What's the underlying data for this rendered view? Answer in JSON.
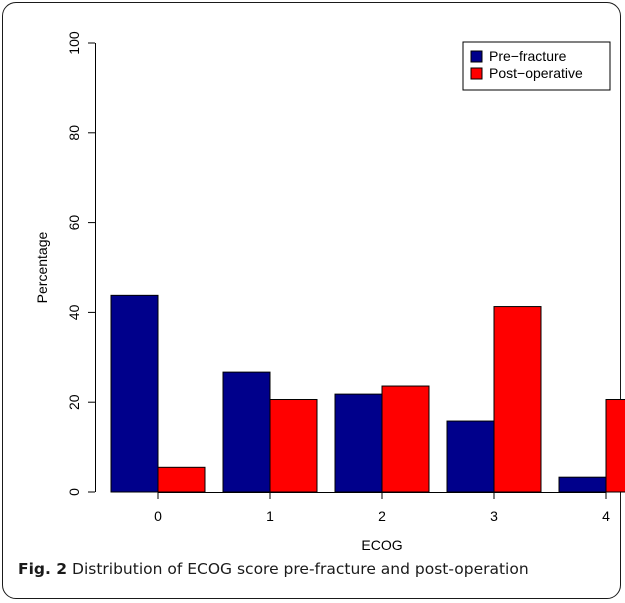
{
  "chart_data": {
    "type": "bar",
    "categories": [
      "0",
      "1",
      "2",
      "3",
      "4"
    ],
    "series": [
      {
        "name": "Pre−fracture",
        "color": "#00008B",
        "values": [
          43.8,
          26.7,
          21.8,
          15.8,
          3.3
        ]
      },
      {
        "name": "Post−operative",
        "color": "#FF0000",
        "values": [
          5.5,
          20.6,
          23.6,
          41.3,
          20.6
        ]
      }
    ],
    "xlabel": "ECOG",
    "ylabel": "Percentage",
    "ylim": [
      0,
      100
    ],
    "yticks": [
      "0",
      "20",
      "40",
      "60",
      "80",
      "100"
    ],
    "legend": "top-right",
    "grid": false
  },
  "caption": {
    "label": "Fig. 2",
    "text": " Distribution of ECOG score pre-fracture and post-operation"
  }
}
